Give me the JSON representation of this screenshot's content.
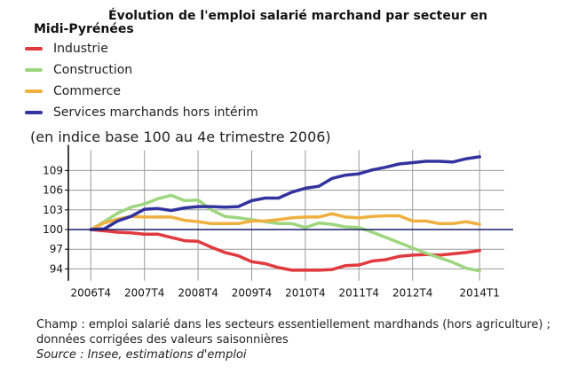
{
  "chart_data": {
    "type": "line",
    "title_line1": "Évolution de l'emploi salarié marchand par secteur en",
    "title_line2": "Midi-Pyrénées",
    "subtitle": "(en indice base 100 au 4e trimestre 2006)",
    "xlabel": "",
    "ylabel": "",
    "ylim": [
      92.2,
      112.9
    ],
    "yticks": [
      94,
      97,
      100,
      103,
      106,
      109
    ],
    "x_tick_labels": [
      {
        "index": 0,
        "label": "2006T4"
      },
      {
        "index": 4,
        "label": "2007T4"
      },
      {
        "index": 8,
        "label": "2008T4"
      },
      {
        "index": 12,
        "label": "2009T4"
      },
      {
        "index": 16,
        "label": "2010T4"
      },
      {
        "index": 20,
        "label": "2011T4"
      },
      {
        "index": 24,
        "label": "2012T4"
      },
      {
        "index": 29,
        "label": "2014T1"
      }
    ],
    "x_quarters_count": 30,
    "grid": true,
    "legend_position": "top-left",
    "series": [
      {
        "name": "Industrie",
        "color": "#e03a3e",
        "values": [
          100,
          99.8,
          99.6,
          99.5,
          99.3,
          99.3,
          98.8,
          98.3,
          98.2,
          97.3,
          96.5,
          96,
          95.1,
          94.8,
          94.2,
          93.8,
          93.8,
          93.8,
          93.9,
          94.5,
          94.6,
          95.2,
          95.4,
          95.9,
          96.1,
          96.2,
          96.1,
          96.3,
          96.5,
          96.8
        ]
      },
      {
        "name": "Construction",
        "color": "#9ed67f",
        "values": [
          100,
          101.2,
          102.5,
          103.4,
          103.9,
          104.7,
          105.2,
          104.4,
          104.5,
          103,
          102,
          101.8,
          101.5,
          101.2,
          100.9,
          100.9,
          100.3,
          101,
          100.8,
          100.4,
          100.3,
          99.6,
          98.8,
          98,
          97.2,
          96.4,
          95.7,
          95,
          94.1,
          93.7
        ]
      },
      {
        "name": "Commerce",
        "color": "#f0b040",
        "values": [
          100,
          101,
          101.6,
          102,
          101.9,
          101.9,
          101.9,
          101.4,
          101.2,
          100.9,
          100.9,
          100.9,
          101.3,
          101.3,
          101.5,
          101.8,
          101.9,
          101.9,
          102.4,
          101.9,
          101.8,
          102,
          102.1,
          102.1,
          101.3,
          101.3,
          100.9,
          100.9,
          101.2,
          100.8
        ]
      },
      {
        "name": "Services marchands hors intérim",
        "color": "#33339f",
        "values": [
          100,
          100.1,
          101.3,
          102,
          103.1,
          103.2,
          102.9,
          103.3,
          103.5,
          103.5,
          103.4,
          103.5,
          104.4,
          104.8,
          104.8,
          105.7,
          106.3,
          106.6,
          107.8,
          108.3,
          108.5,
          109.1,
          109.5,
          110,
          110.2,
          110.4,
          110.4,
          110.3,
          110.8,
          111.1
        ]
      }
    ]
  },
  "notes": {
    "champ": "Champ : emploi salarié dans les secteurs essentiellement mardhands (hors agriculture) ; données corrigées des valeurs saisonnières",
    "source": "Source : Insee, estimations d'emploi"
  }
}
